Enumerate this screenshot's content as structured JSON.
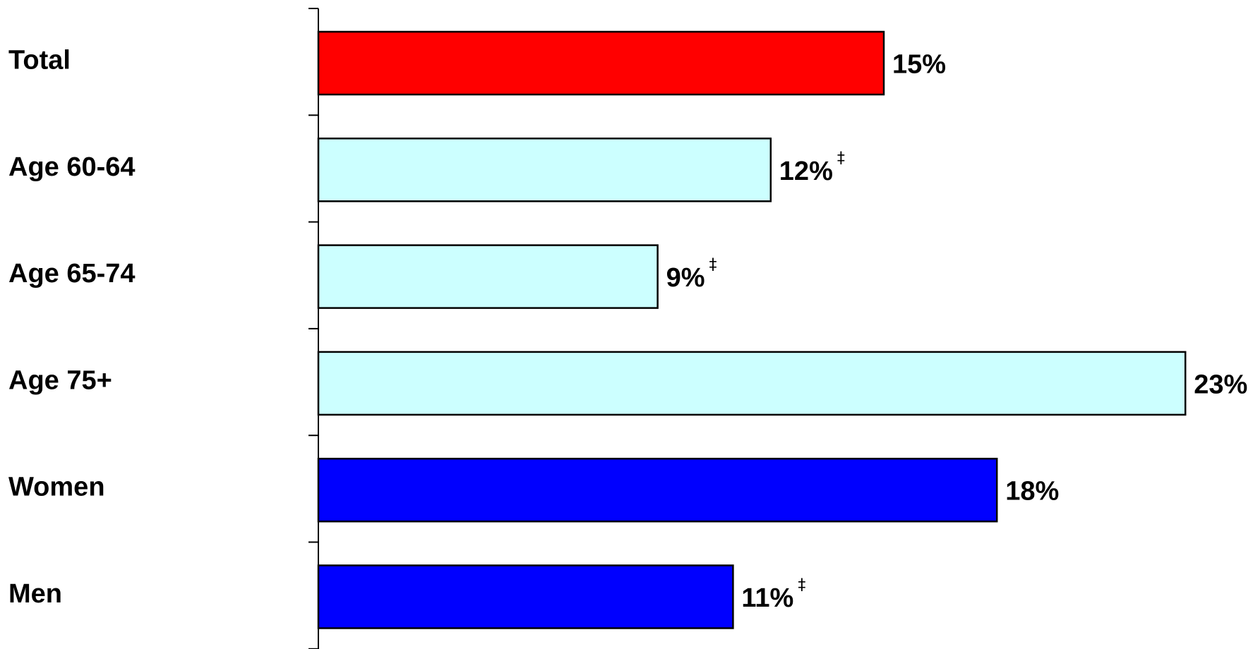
{
  "chart_data": {
    "type": "bar",
    "orientation": "horizontal",
    "categories": [
      "Total",
      "Age 60-64",
      "Age 65-74",
      "Age 75+",
      "Women",
      "Men"
    ],
    "values": [
      15,
      12,
      9,
      23,
      18,
      11
    ],
    "value_labels": [
      "15%",
      "12%",
      "9%",
      "23%",
      "18%",
      "11%"
    ],
    "footnote_marks": [
      "",
      "‡",
      "‡",
      "",
      "",
      "‡"
    ],
    "bar_colors": [
      "#ff0000",
      "#ccffff",
      "#ccffff",
      "#ccffff",
      "#0000ff",
      "#0000ff"
    ],
    "grid": false,
    "legend": "none"
  }
}
